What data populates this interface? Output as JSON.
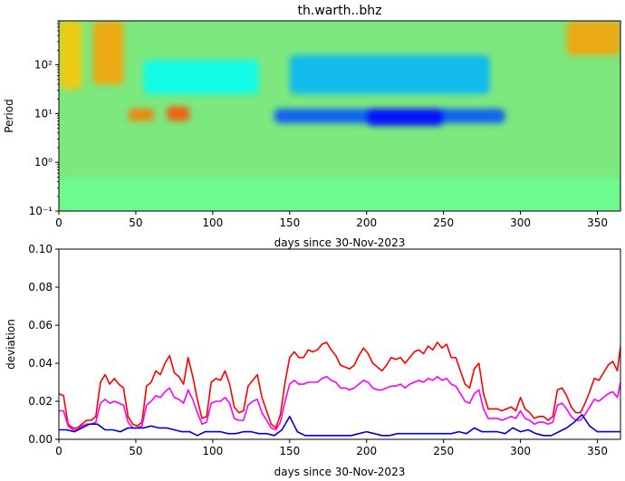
{
  "chart_data": [
    {
      "type": "heatmap",
      "title": "th.warth..bhz",
      "xlabel": "days since 30-Nov-2023",
      "ylabel": "Period",
      "xlim": [
        0,
        365
      ],
      "ylim": [
        0.1,
        800
      ],
      "yscale": "log",
      "xticks": [
        "0",
        "50",
        "100",
        "150",
        "200",
        "250",
        "300",
        "350"
      ],
      "yticks": [
        {
          "value": 0.1,
          "label": "10⁻¹"
        },
        {
          "value": 1,
          "label": "10⁰"
        },
        {
          "value": 10,
          "label": "10¹"
        },
        {
          "value": 100,
          "label": "10²"
        }
      ],
      "colormap": "jet",
      "value_range": [
        0,
        1
      ],
      "features": [
        {
          "x": [
            0,
            15
          ],
          "logy": [
            1.5,
            2.9
          ],
          "level": 0.68
        },
        {
          "x": [
            22,
            42
          ],
          "logy": [
            1.6,
            2.9
          ],
          "level": 0.72
        },
        {
          "x": [
            45,
            62
          ],
          "logy": [
            0.85,
            1.1
          ],
          "level": 0.76
        },
        {
          "x": [
            70,
            85
          ],
          "logy": [
            0.85,
            1.15
          ],
          "level": 0.8
        },
        {
          "x": [
            330,
            365
          ],
          "logy": [
            2.2,
            2.9
          ],
          "level": 0.72
        },
        {
          "x": [
            150,
            280
          ],
          "logy": [
            1.4,
            2.2
          ],
          "level": 0.3
        },
        {
          "x": [
            140,
            290
          ],
          "logy": [
            0.8,
            1.1
          ],
          "level": 0.2
        },
        {
          "x": [
            200,
            250
          ],
          "logy": [
            0.75,
            1.1
          ],
          "level": 0.13
        },
        {
          "x": [
            55,
            130
          ],
          "logy": [
            1.4,
            2.1
          ],
          "level": 0.38
        },
        {
          "x": [
            0,
            365
          ],
          "logy": [
            -1,
            -0.3
          ],
          "level": 0.48
        }
      ]
    },
    {
      "type": "line",
      "xlabel": "days since 30-Nov-2023",
      "ylabel": "deviation",
      "xlim": [
        0,
        365
      ],
      "ylim": [
        0,
        0.1
      ],
      "xticks": [
        "0",
        "50",
        "100",
        "150",
        "200",
        "250",
        "300",
        "350"
      ],
      "yticks": [
        "0.00",
        "0.02",
        "0.04",
        "0.06",
        "0.08",
        "0.10"
      ],
      "series": [
        {
          "color": "#ff0000",
          "x": [
            0,
            3,
            6,
            9,
            12,
            15,
            18,
            21,
            24,
            27,
            30,
            33,
            36,
            39,
            42,
            45,
            48,
            51,
            54,
            57,
            60,
            63,
            66,
            69,
            72,
            75,
            78,
            81,
            84,
            87,
            90,
            93,
            96,
            99,
            102,
            105,
            108,
            111,
            114,
            117,
            120,
            123,
            126,
            129,
            132,
            135,
            138,
            141,
            144,
            147,
            150,
            153,
            156,
            159,
            162,
            165,
            168,
            171,
            174,
            177,
            180,
            183,
            186,
            189,
            192,
            195,
            198,
            201,
            204,
            207,
            210,
            213,
            216,
            219,
            222,
            225,
            228,
            231,
            234,
            237,
            240,
            243,
            246,
            249,
            252,
            255,
            258,
            261,
            264,
            267,
            270,
            273,
            276,
            279,
            282,
            285,
            288,
            291,
            294,
            297,
            300,
            303,
            306,
            309,
            312,
            315,
            318,
            321,
            324,
            327,
            330,
            333,
            336,
            339,
            342,
            345,
            348,
            351,
            354,
            357,
            360,
            363,
            365
          ],
          "y": [
            0.024,
            0.023,
            0.008,
            0.006,
            0.006,
            0.008,
            0.01,
            0.01,
            0.012,
            0.03,
            0.034,
            0.029,
            0.032,
            0.029,
            0.027,
            0.012,
            0.008,
            0.007,
            0.009,
            0.028,
            0.03,
            0.036,
            0.034,
            0.04,
            0.044,
            0.035,
            0.033,
            0.029,
            0.043,
            0.033,
            0.021,
            0.011,
            0.012,
            0.03,
            0.032,
            0.031,
            0.036,
            0.029,
            0.017,
            0.014,
            0.015,
            0.028,
            0.031,
            0.034,
            0.022,
            0.015,
            0.008,
            0.006,
            0.013,
            0.03,
            0.043,
            0.046,
            0.043,
            0.043,
            0.047,
            0.046,
            0.047,
            0.05,
            0.051,
            0.047,
            0.044,
            0.039,
            0.038,
            0.037,
            0.039,
            0.044,
            0.048,
            0.045,
            0.04,
            0.038,
            0.036,
            0.039,
            0.043,
            0.042,
            0.043,
            0.04,
            0.043,
            0.046,
            0.047,
            0.045,
            0.049,
            0.047,
            0.051,
            0.048,
            0.05,
            0.043,
            0.043,
            0.036,
            0.029,
            0.027,
            0.037,
            0.04,
            0.024,
            0.016,
            0.016,
            0.016,
            0.015,
            0.016,
            0.017,
            0.015,
            0.022,
            0.016,
            0.014,
            0.011,
            0.012,
            0.012,
            0.01,
            0.012,
            0.026,
            0.027,
            0.023,
            0.017,
            0.014,
            0.014,
            0.019,
            0.025,
            0.032,
            0.031,
            0.035,
            0.039,
            0.041,
            0.036,
            0.049
          ]
        },
        {
          "color": "#ff00ff",
          "x": [
            0,
            3,
            6,
            9,
            12,
            15,
            18,
            21,
            24,
            27,
            30,
            33,
            36,
            39,
            42,
            45,
            48,
            51,
            54,
            57,
            60,
            63,
            66,
            69,
            72,
            75,
            78,
            81,
            84,
            87,
            90,
            93,
            96,
            99,
            102,
            105,
            108,
            111,
            114,
            117,
            120,
            123,
            126,
            129,
            132,
            135,
            138,
            141,
            144,
            147,
            150,
            153,
            156,
            159,
            162,
            165,
            168,
            171,
            174,
            177,
            180,
            183,
            186,
            189,
            192,
            195,
            198,
            201,
            204,
            207,
            210,
            213,
            216,
            219,
            222,
            225,
            228,
            231,
            234,
            237,
            240,
            243,
            246,
            249,
            252,
            255,
            258,
            261,
            264,
            267,
            270,
            273,
            276,
            279,
            282,
            285,
            288,
            291,
            294,
            297,
            300,
            303,
            306,
            309,
            312,
            315,
            318,
            321,
            324,
            327,
            330,
            333,
            336,
            339,
            342,
            345,
            348,
            351,
            354,
            357,
            360,
            363,
            365
          ],
          "y": [
            0.015,
            0.015,
            0.007,
            0.005,
            0.005,
            0.007,
            0.008,
            0.008,
            0.009,
            0.019,
            0.021,
            0.019,
            0.02,
            0.019,
            0.018,
            0.009,
            0.006,
            0.006,
            0.007,
            0.018,
            0.02,
            0.023,
            0.022,
            0.025,
            0.027,
            0.022,
            0.021,
            0.019,
            0.026,
            0.021,
            0.014,
            0.008,
            0.009,
            0.019,
            0.02,
            0.02,
            0.022,
            0.019,
            0.011,
            0.01,
            0.01,
            0.018,
            0.02,
            0.021,
            0.014,
            0.01,
            0.006,
            0.005,
            0.009,
            0.02,
            0.029,
            0.031,
            0.029,
            0.029,
            0.03,
            0.03,
            0.03,
            0.032,
            0.033,
            0.031,
            0.03,
            0.027,
            0.027,
            0.026,
            0.027,
            0.029,
            0.031,
            0.03,
            0.027,
            0.026,
            0.026,
            0.027,
            0.028,
            0.028,
            0.029,
            0.027,
            0.029,
            0.03,
            0.031,
            0.03,
            0.032,
            0.031,
            0.033,
            0.031,
            0.032,
            0.029,
            0.028,
            0.024,
            0.02,
            0.019,
            0.024,
            0.026,
            0.016,
            0.011,
            0.011,
            0.011,
            0.01,
            0.011,
            0.012,
            0.011,
            0.015,
            0.011,
            0.01,
            0.008,
            0.009,
            0.009,
            0.008,
            0.009,
            0.018,
            0.019,
            0.016,
            0.012,
            0.01,
            0.01,
            0.013,
            0.017,
            0.021,
            0.02,
            0.022,
            0.024,
            0.025,
            0.022,
            0.03
          ]
        },
        {
          "color": "#0000cc",
          "x": [
            0,
            5,
            10,
            15,
            20,
            25,
            30,
            35,
            40,
            45,
            50,
            55,
            60,
            65,
            70,
            75,
            80,
            85,
            90,
            95,
            100,
            105,
            110,
            115,
            120,
            125,
            130,
            135,
            140,
            145,
            150,
            155,
            160,
            165,
            170,
            175,
            180,
            185,
            190,
            195,
            200,
            205,
            210,
            215,
            220,
            225,
            230,
            235,
            240,
            245,
            250,
            255,
            260,
            265,
            270,
            275,
            280,
            285,
            290,
            295,
            300,
            305,
            310,
            315,
            320,
            325,
            330,
            335,
            340,
            345,
            350,
            355,
            360,
            365
          ],
          "y": [
            0.005,
            0.005,
            0.004,
            0.006,
            0.008,
            0.008,
            0.005,
            0.005,
            0.004,
            0.006,
            0.006,
            0.006,
            0.007,
            0.006,
            0.006,
            0.005,
            0.004,
            0.004,
            0.002,
            0.004,
            0.004,
            0.004,
            0.003,
            0.003,
            0.004,
            0.004,
            0.003,
            0.003,
            0.002,
            0.005,
            0.012,
            0.004,
            0.002,
            0.002,
            0.002,
            0.002,
            0.002,
            0.002,
            0.002,
            0.003,
            0.004,
            0.003,
            0.002,
            0.002,
            0.003,
            0.003,
            0.003,
            0.003,
            0.003,
            0.003,
            0.003,
            0.003,
            0.004,
            0.003,
            0.006,
            0.004,
            0.004,
            0.004,
            0.003,
            0.006,
            0.004,
            0.005,
            0.003,
            0.002,
            0.002,
            0.004,
            0.006,
            0.009,
            0.013,
            0.007,
            0.004,
            0.004,
            0.004,
            0.004
          ]
        }
      ]
    }
  ]
}
